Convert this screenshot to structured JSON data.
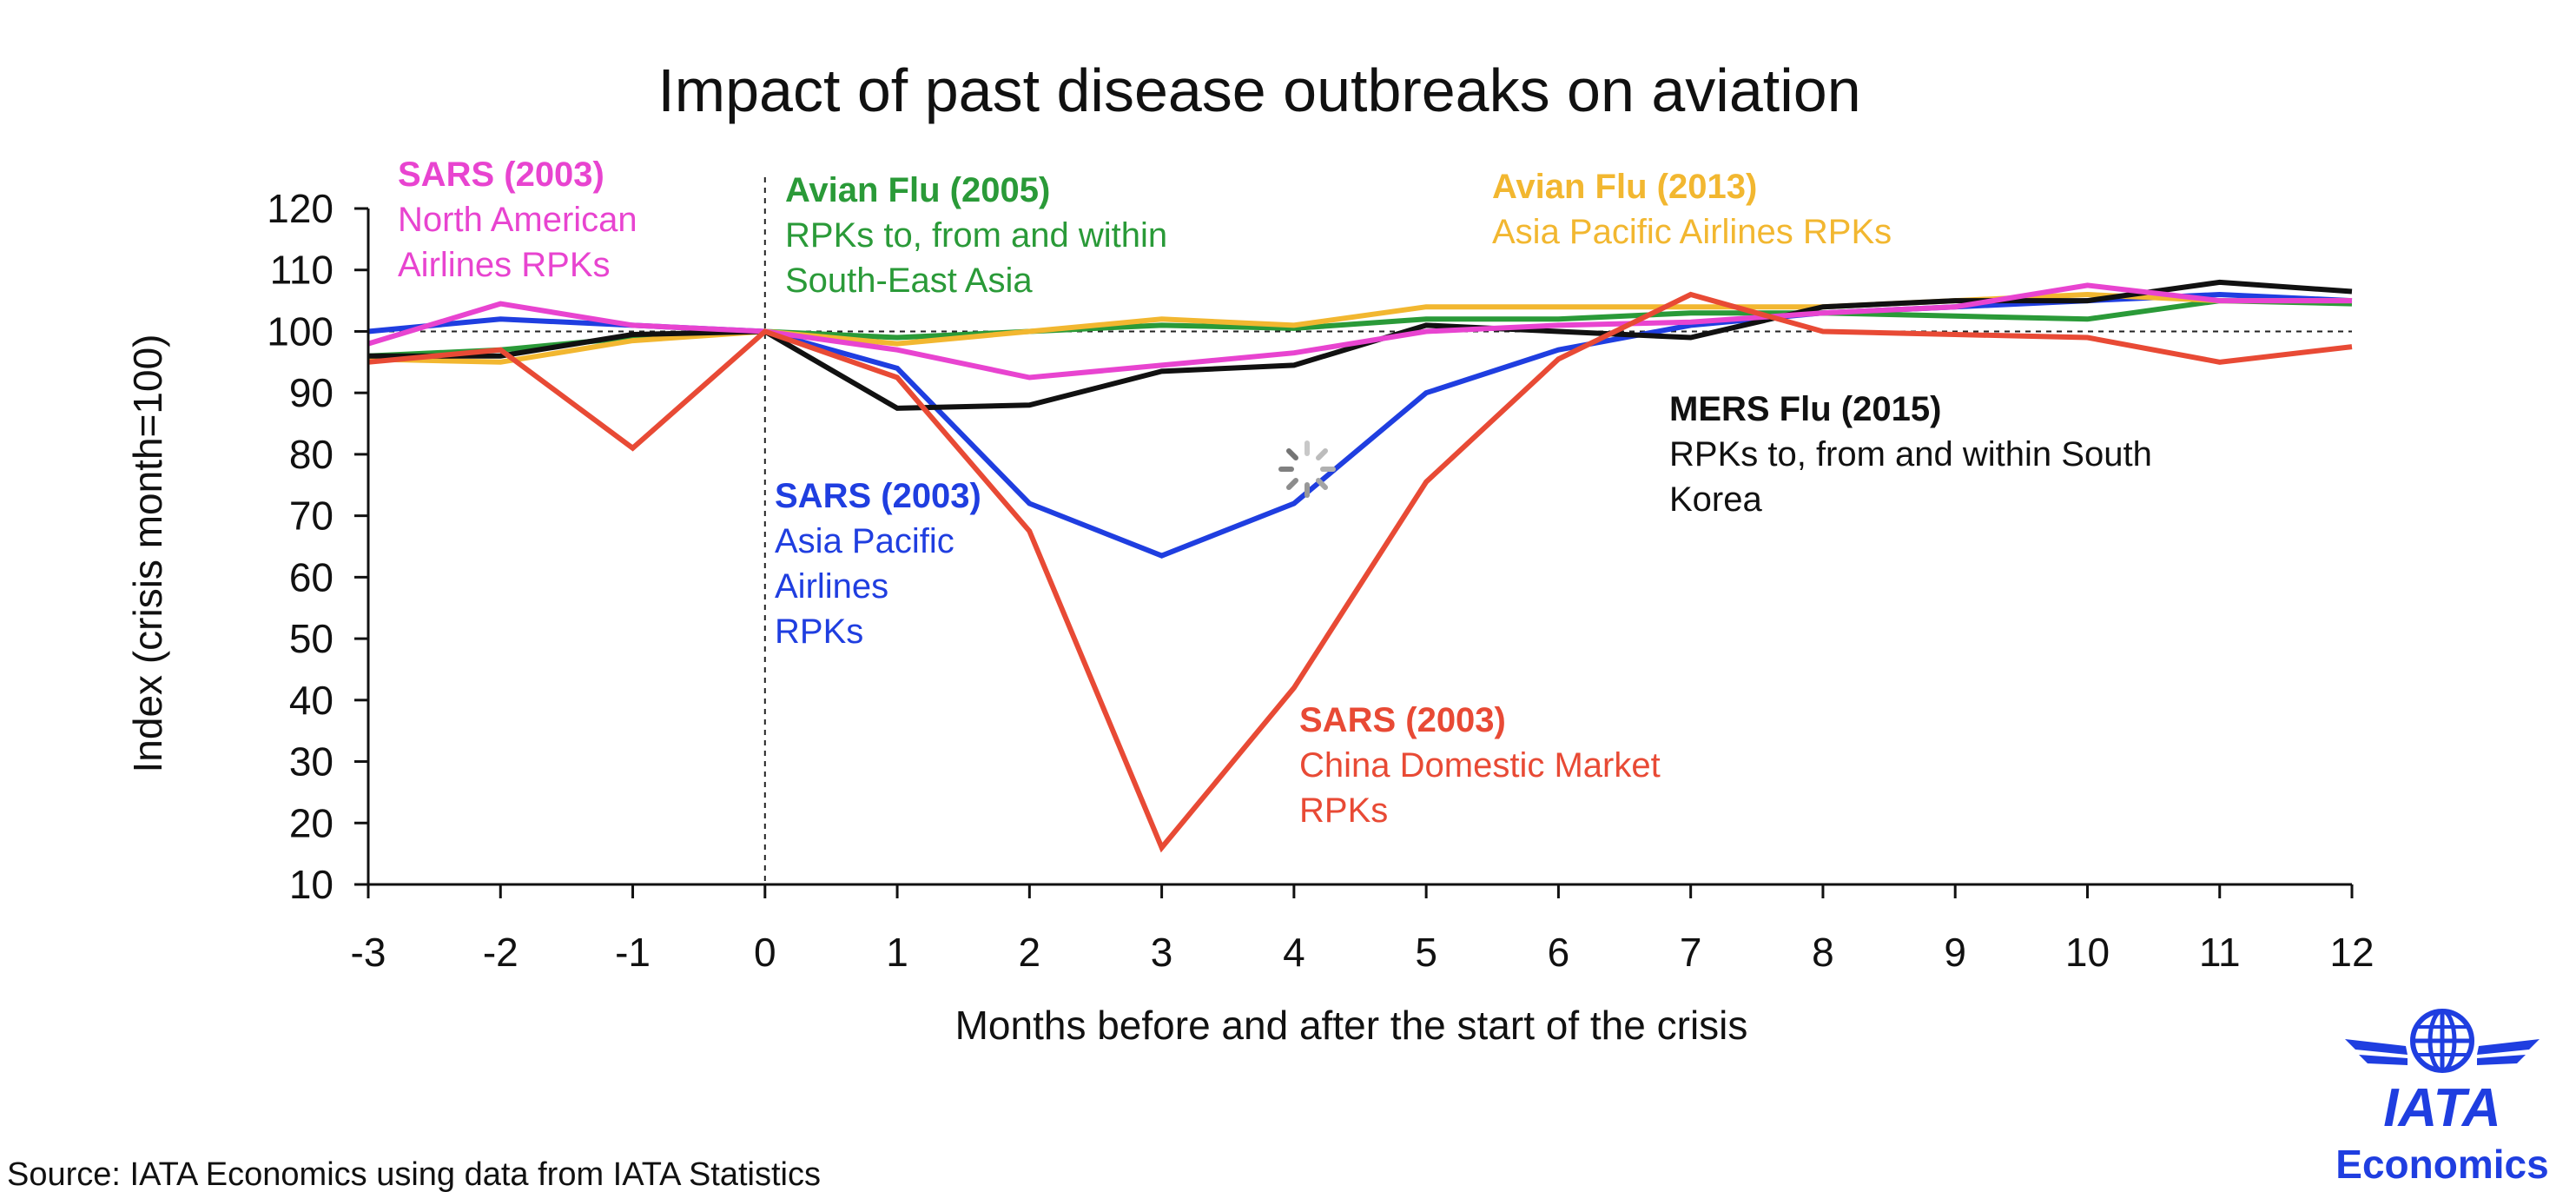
{
  "chart_data": {
    "type": "line",
    "title": "Impact of past disease outbreaks on aviation",
    "xlabel": "Months before and after the start of the crisis",
    "ylabel": "Index (crisis month=100)",
    "x": [
      -3,
      -2,
      -1,
      0,
      1,
      2,
      3,
      4,
      5,
      6,
      7,
      8,
      9,
      10,
      11,
      12
    ],
    "xlim": [
      -3,
      12
    ],
    "ylim": [
      10,
      120
    ],
    "yticks": [
      10,
      20,
      30,
      40,
      50,
      60,
      70,
      80,
      90,
      100,
      110,
      120
    ],
    "reference_line_y": 100,
    "reference_line_x": 0,
    "series": [
      {
        "name": "SARS (2003) Asia Pacific Airlines RPKs",
        "color": "#1f3ee0",
        "values": [
          100,
          102,
          101,
          100,
          94,
          72,
          63.5,
          72,
          90,
          97,
          101,
          103,
          104,
          105,
          106,
          105
        ]
      },
      {
        "name": "Avian Flu (2005) RPKs to, from and within South-East Asia",
        "color": "#2a9a38",
        "values": [
          96,
          97,
          99,
          100,
          99,
          100,
          101,
          100.5,
          102,
          102,
          103,
          103,
          102.5,
          102,
          105,
          104.5
        ]
      },
      {
        "name": "Avian Flu (2013) Asia Pacific Airlines RPKs",
        "color": "#f2b730",
        "values": [
          95.5,
          95,
          98.5,
          100,
          98,
          100,
          102,
          101,
          104,
          104,
          104,
          104,
          105,
          106,
          105,
          105
        ]
      },
      {
        "name": "MERS Flu (2015) RPKs to, from and within South Korea",
        "color": "#111111",
        "values": [
          96,
          96,
          99.5,
          100,
          87.5,
          88,
          93.5,
          94.5,
          101,
          100,
          99,
          104,
          105,
          105,
          108,
          106.5
        ]
      },
      {
        "name": "SARS (2003) North American Airlines RPKs",
        "color": "#e844d0",
        "values": [
          98,
          104.5,
          101,
          100,
          97,
          92.5,
          94.5,
          96.5,
          100,
          101,
          101.5,
          103,
          104,
          107.5,
          105,
          105
        ]
      },
      {
        "name": "SARS (2003) China Domestic Market RPKs",
        "color": "#e84a35",
        "values": [
          95,
          97,
          81,
          100,
          92.5,
          67.5,
          16,
          42,
          75.5,
          95.5,
          106,
          100,
          99.5,
          99,
          95,
          97.5
        ]
      }
    ],
    "annotations": [
      {
        "id": "sars-na",
        "color": "#e844d0",
        "heading": "SARS (2003)",
        "lines": [
          "North American",
          "Airlines RPKs"
        ]
      },
      {
        "id": "avian-2005",
        "color": "#2a9a38",
        "heading": "Avian Flu (2005)",
        "lines": [
          "RPKs to, from and within",
          "South-East Asia"
        ]
      },
      {
        "id": "avian-2013",
        "color": "#f2b730",
        "heading": "Avian Flu (2013)",
        "lines": [
          "Asia Pacific Airlines RPKs"
        ]
      },
      {
        "id": "mers-2015",
        "color": "#111111",
        "heading": "MERS Flu (2015)",
        "lines": [
          "RPKs to, from and within South",
          "Korea"
        ]
      },
      {
        "id": "sars-ap",
        "color": "#1f3ee0",
        "heading": "SARS (2003)",
        "lines": [
          "Asia Pacific",
          "Airlines",
          "RPKs"
        ]
      },
      {
        "id": "sars-china",
        "color": "#e84a35",
        "heading": "SARS (2003)",
        "lines": [
          "China Domestic Market",
          "RPKs"
        ]
      }
    ],
    "source": "Source: IATA Economics using data from IATA Statistics"
  },
  "logo": {
    "name": "IATA",
    "subtitle": "Economics",
    "color": "#1f3ee0"
  }
}
